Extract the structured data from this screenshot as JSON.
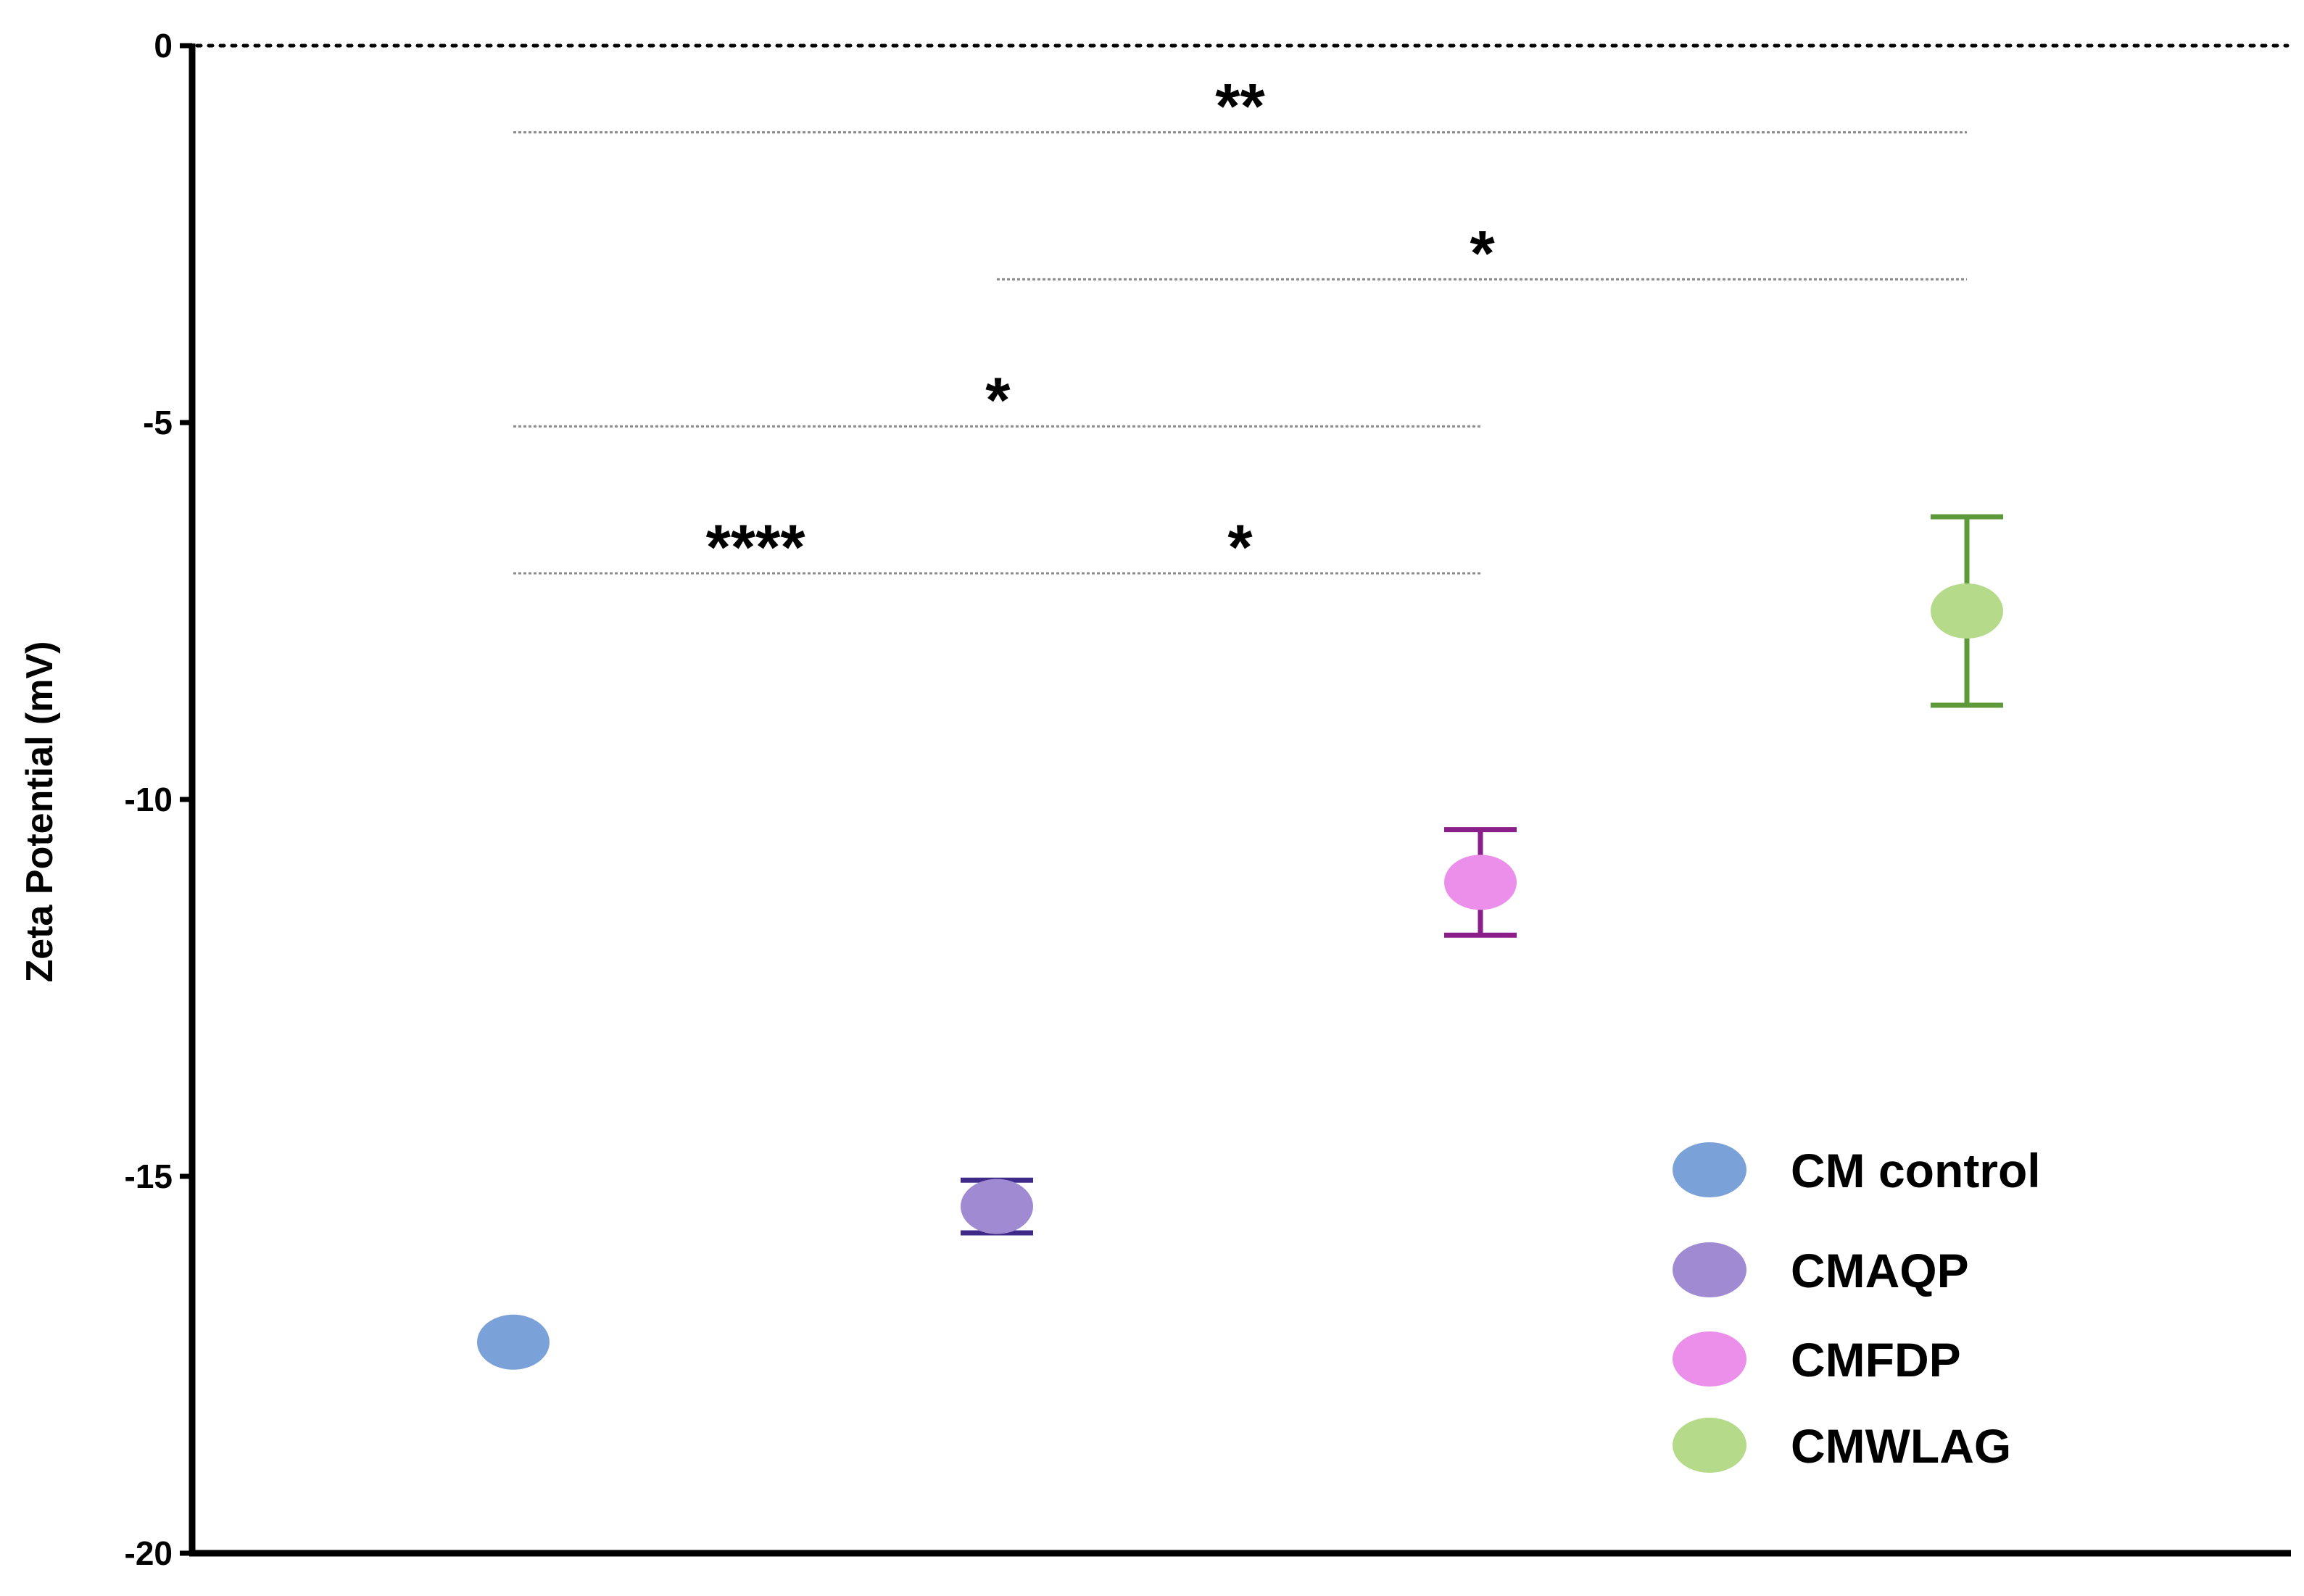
{
  "chart_data": {
    "type": "scatter",
    "title": "",
    "xlabel": "",
    "ylabel": "Zeta Potential (mV)",
    "ylim": [
      -20,
      0
    ],
    "yticks": [
      "0",
      "-5",
      "-10",
      "-15",
      "-20"
    ],
    "grid": false,
    "legend_position": "bottom-right",
    "reference_line": {
      "y": 0,
      "style": "dotted"
    },
    "series": [
      {
        "name": "CM control",
        "x": 1,
        "y": -17.2,
        "err_low": -17.2,
        "err_high": -17.2,
        "color": "#7ba2d8",
        "err_color": "#4a6fb5"
      },
      {
        "name": "CMAQP",
        "x": 2,
        "y": -15.4,
        "err_low": -15.75,
        "err_high": -15.05,
        "color": "#a08bd2",
        "err_color": "#3f2a8a"
      },
      {
        "name": "CMFDP",
        "x": 3,
        "y": -11.1,
        "err_low": -11.8,
        "err_high": -10.4,
        "color": "#ec8fea",
        "err_color": "#8a1f8a"
      },
      {
        "name": "CMWLAG",
        "x": 4,
        "y": -7.5,
        "err_low": -8.75,
        "err_high": -6.25,
        "color": "#b5db8a",
        "err_color": "#5e9a3a"
      }
    ],
    "significance": [
      {
        "label": "**",
        "from": 1,
        "to": 4,
        "y": -1.15,
        "label_x": 2.5
      },
      {
        "label": "*",
        "from": 2,
        "to": 4,
        "y": -3.1,
        "label_x": 3.0
      },
      {
        "label": "*",
        "from": 1,
        "to": 3,
        "y": -5.05,
        "label_x": 2.0
      },
      {
        "label": "****",
        "from": 1,
        "to": 3,
        "y": -7.0,
        "label_x": 1.5
      },
      {
        "label": "*",
        "from": 1,
        "to": 3,
        "y": -7.0,
        "label_x": 2.5
      }
    ]
  }
}
